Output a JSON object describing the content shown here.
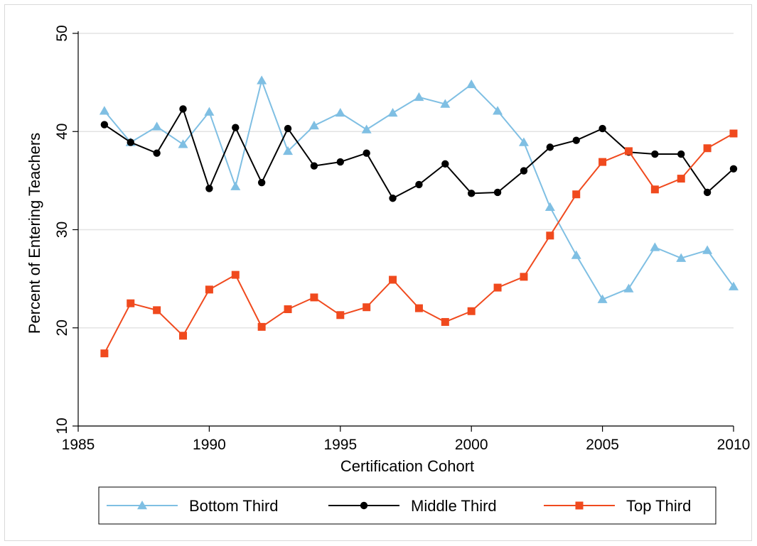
{
  "chart_data": {
    "type": "line",
    "title": "",
    "xlabel": "Certification Cohort",
    "ylabel": "Percent of Entering Teachers",
    "xlim": [
      1985,
      2010
    ],
    "ylim": [
      10,
      50
    ],
    "xticks": [
      1985,
      1990,
      1995,
      2000,
      2005,
      2010
    ],
    "yticks": [
      10,
      20,
      30,
      40,
      50
    ],
    "grid": true,
    "legend_position": "bottom",
    "x": [
      1986,
      1987,
      1988,
      1989,
      1990,
      1991,
      1992,
      1993,
      1994,
      1995,
      1996,
      1997,
      1998,
      1999,
      2000,
      2001,
      2002,
      2003,
      2004,
      2005,
      2006,
      2007,
      2008,
      2009,
      2010
    ],
    "series": [
      {
        "name": "Bottom Third",
        "color": "#7fbfe3",
        "marker": "triangle",
        "values": [
          42.1,
          38.9,
          40.5,
          38.7,
          42.0,
          34.4,
          45.2,
          38.0,
          40.6,
          41.9,
          40.2,
          41.9,
          43.5,
          42.8,
          44.8,
          42.1,
          38.9,
          32.3,
          27.4,
          22.9,
          24.0,
          28.2,
          27.1,
          27.9,
          24.2
        ]
      },
      {
        "name": "Middle Third",
        "color": "#000000",
        "marker": "circle",
        "values": [
          40.7,
          38.9,
          37.8,
          42.3,
          34.2,
          40.4,
          34.8,
          40.3,
          36.5,
          36.9,
          37.8,
          33.2,
          34.6,
          36.7,
          33.7,
          33.8,
          36.0,
          38.4,
          39.1,
          40.3,
          37.9,
          37.7,
          37.7,
          33.8,
          36.2
        ]
      },
      {
        "name": "Top Third",
        "color": "#f04a1e",
        "marker": "square",
        "values": [
          17.4,
          22.5,
          21.8,
          19.2,
          23.9,
          25.4,
          20.1,
          21.9,
          23.1,
          21.3,
          22.1,
          24.9,
          22.0,
          20.6,
          21.7,
          24.1,
          25.2,
          29.4,
          33.6,
          36.9,
          38.0,
          34.1,
          35.2,
          38.3,
          39.8
        ]
      }
    ]
  }
}
